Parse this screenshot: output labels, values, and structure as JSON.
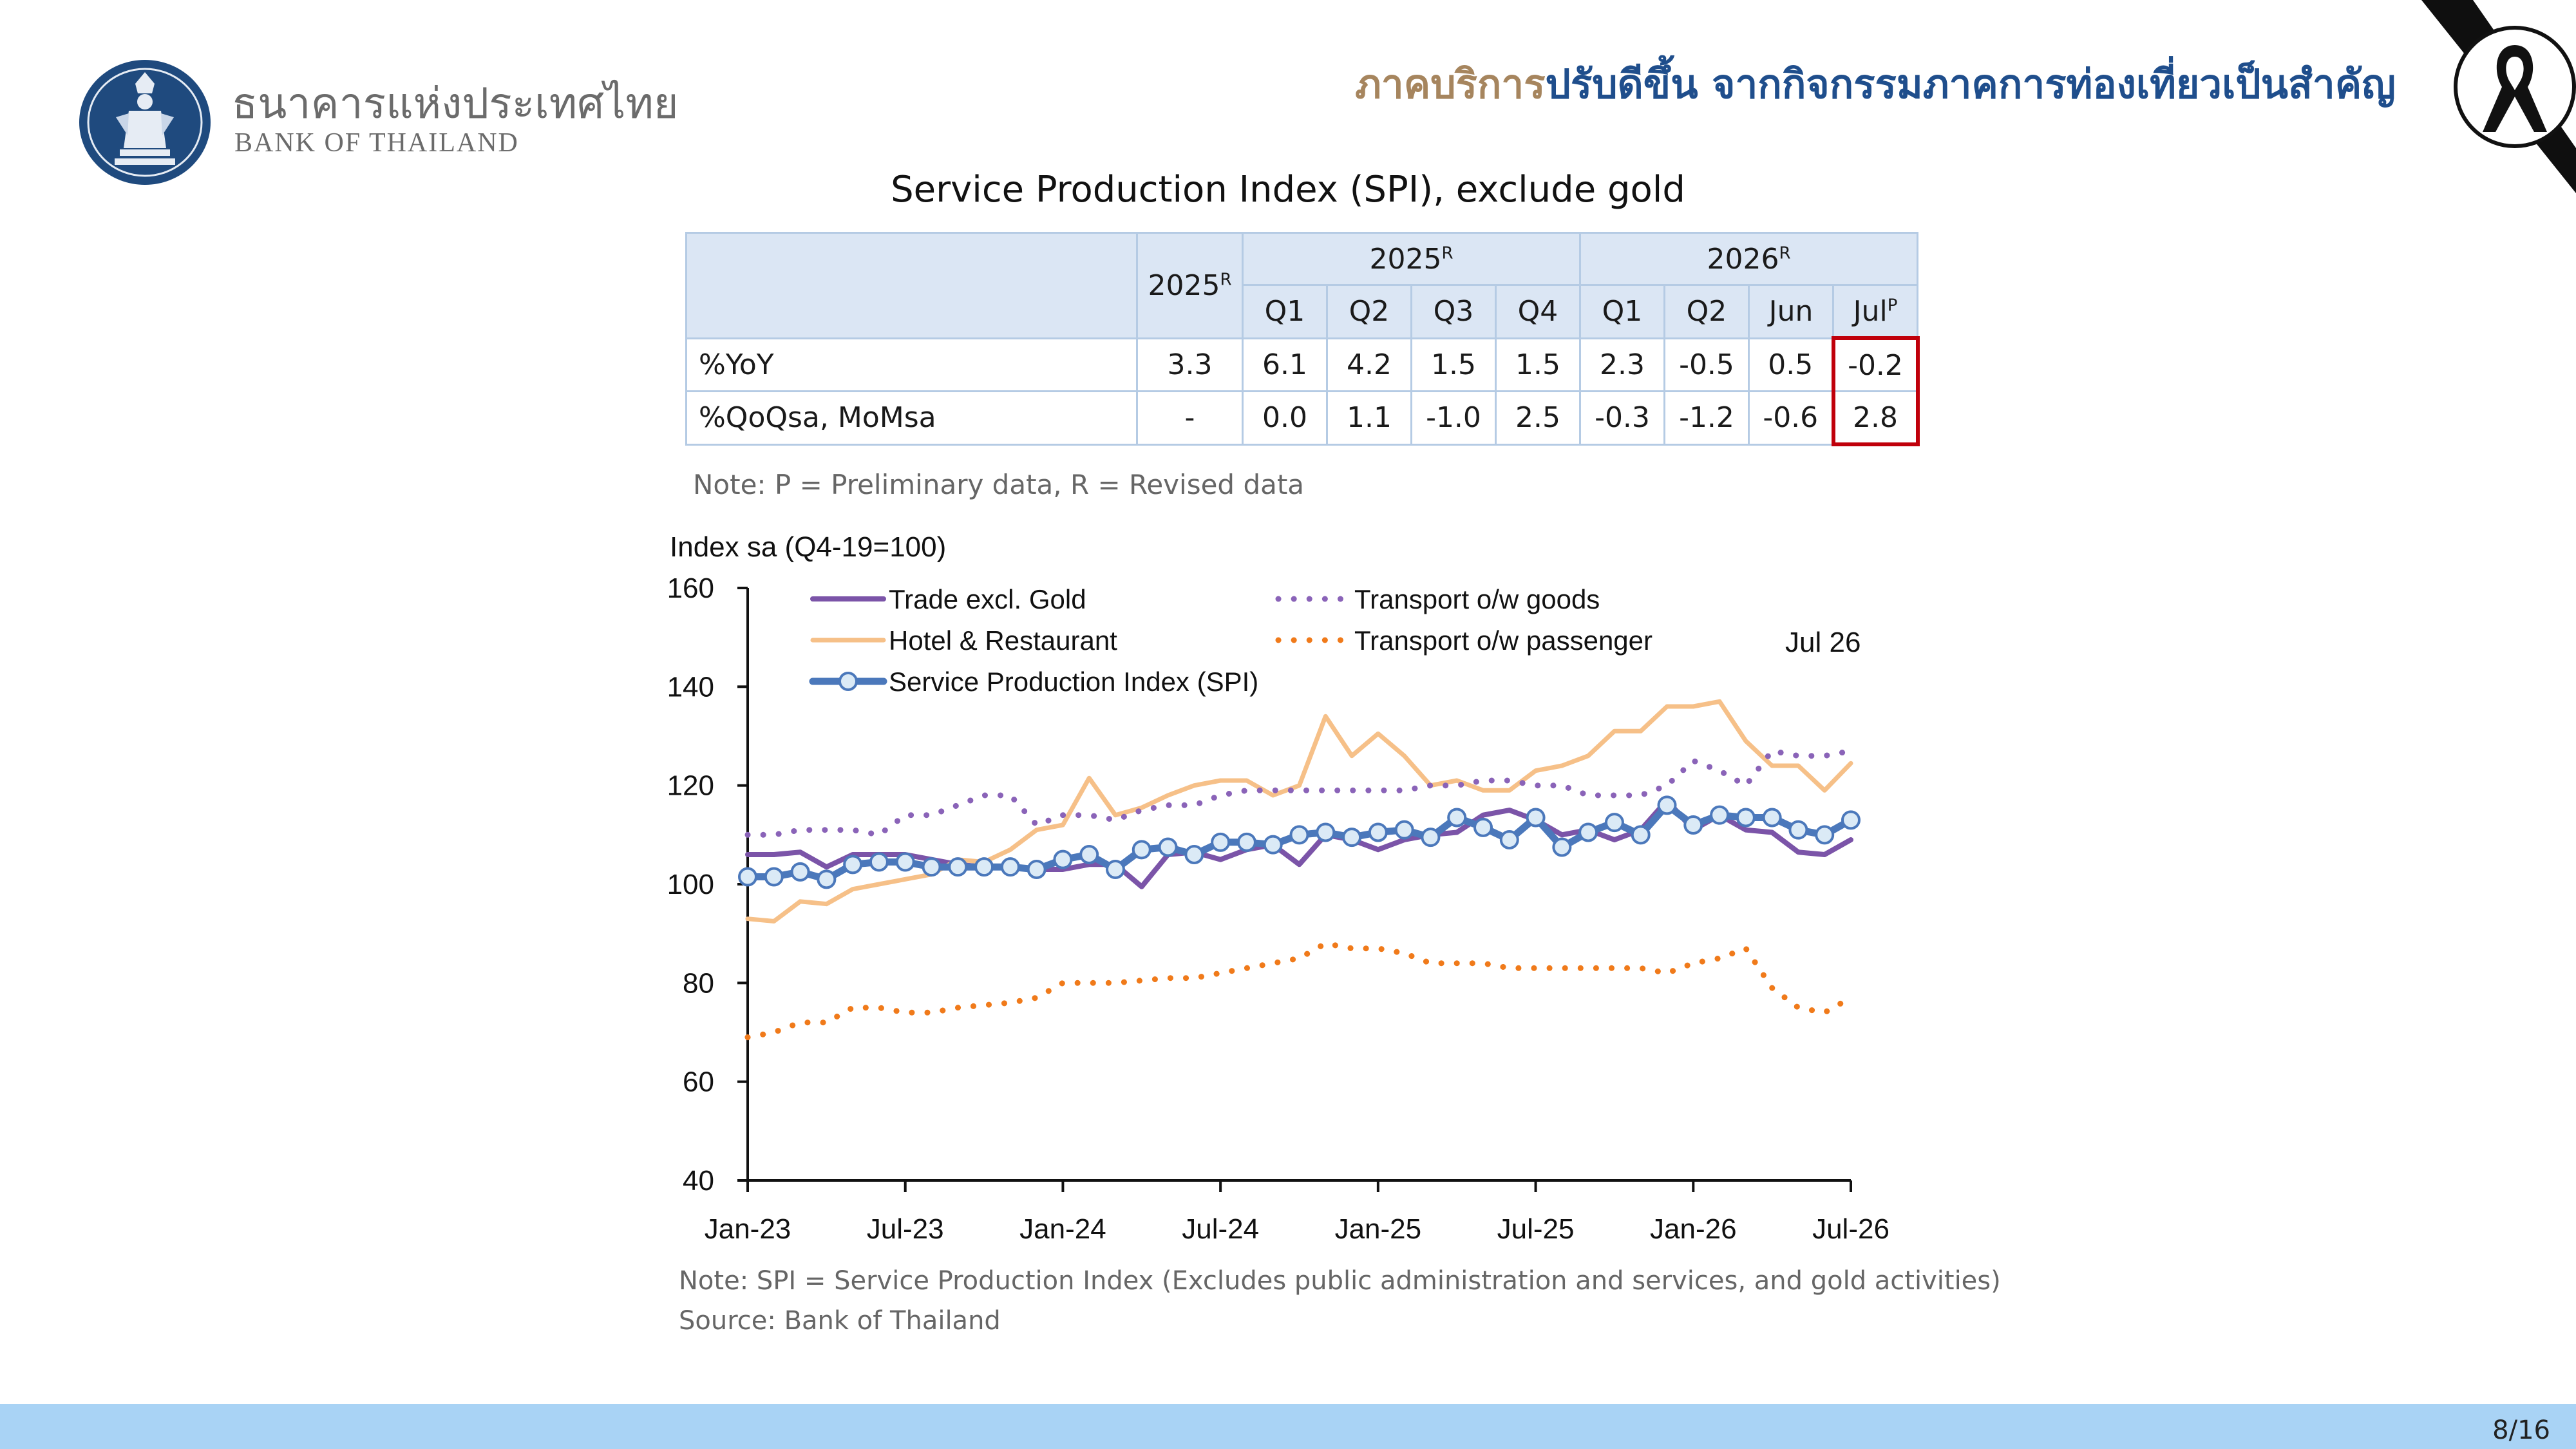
{
  "org": {
    "name_th": "ธนาคารแห่งประเทศไทย",
    "name_en": "BANK OF THAILAND"
  },
  "headline": {
    "part1": "ภาคบริการ",
    "part2": "ปรับดีขึ้น จากกิจกรรมภาคการท่องเที่ยวเป็นสำคัญ"
  },
  "table": {
    "title": "Service Production Index (SPI), exclude gold",
    "col_annual": "2025",
    "col_annual_sup": "R",
    "group1": "2025",
    "group1_sup": "R",
    "group2": "2026",
    "group2_sup": "R",
    "sub1": [
      "Q1",
      "Q2",
      "Q3",
      "Q4"
    ],
    "sub2": [
      "Q1",
      "Q2",
      "Jun",
      "Jul"
    ],
    "sub2_last_sup": "P",
    "rows": [
      {
        "label": "%YoY",
        "annual": "3.3",
        "g1": [
          "6.1",
          "4.2",
          "1.5",
          "1.5"
        ],
        "g2": [
          "2.3",
          "-0.5",
          "0.5",
          "-0.2"
        ]
      },
      {
        "label": "%QoQsa, MoMsa",
        "annual": "-",
        "g1": [
          "0.0",
          "1.1",
          "-1.0",
          "2.5"
        ],
        "g2": [
          "-0.3",
          "-1.2",
          "-0.6",
          "2.8"
        ]
      }
    ],
    "note": "Note:  P = Preliminary data, R = Revised data"
  },
  "chart_data": {
    "type": "line",
    "ylabel": "Index sa (Q4-19=100)",
    "ylim": [
      40,
      160
    ],
    "yticks": [
      "40",
      "60",
      "80",
      "100",
      "120",
      "140",
      "160"
    ],
    "xticks": [
      "Jan-23",
      "Jul-23",
      "Jan-24",
      "Jul-24",
      "Jan-25",
      "Jul-25",
      "Jan-26",
      "Jul-26"
    ],
    "annotation": "Jul 26",
    "x_start": "Jan-23",
    "n_months": 43,
    "series": [
      {
        "name": "Trade excl. Gold",
        "color": "#7b54a8",
        "style": "solid",
        "width": 8,
        "values": [
          106,
          106,
          106.5,
          103.5,
          106,
          106,
          106,
          105,
          104,
          103.5,
          103.5,
          103,
          103,
          104,
          104,
          99.5,
          106,
          106.5,
          105,
          107,
          108,
          104,
          110,
          109,
          107,
          109,
          110,
          110.5,
          114,
          115,
          113,
          110,
          111,
          109,
          111,
          117,
          111,
          114,
          111,
          110.5,
          106.5,
          106,
          109
        ]
      },
      {
        "name": "Hotel & Restaurant",
        "color": "#f6c088",
        "style": "solid",
        "width": 7,
        "values": [
          93,
          92.5,
          96.5,
          96,
          99,
          100,
          101,
          102,
          105,
          104.5,
          107,
          111,
          112,
          121.5,
          114,
          115.5,
          118,
          120,
          121,
          121,
          118,
          120,
          134,
          126,
          130.5,
          126,
          120,
          121,
          119,
          119,
          123,
          124,
          126,
          131,
          131,
          136,
          136,
          137,
          129,
          124,
          124,
          119,
          124.5
        ]
      },
      {
        "name": "Transport o/w goods",
        "color": "#8a63b8",
        "style": "dot",
        "width": 9,
        "values": [
          110,
          110,
          111,
          111,
          111,
          110,
          114,
          114,
          116,
          118,
          118,
          112,
          114,
          114,
          113,
          115,
          116,
          116,
          118,
          119,
          119,
          119,
          119,
          119,
          119,
          119,
          120,
          120,
          121,
          121,
          120,
          120,
          118,
          118,
          118,
          120,
          125,
          123,
          120,
          127,
          126,
          126,
          127
        ]
      },
      {
        "name": "Transport o/w passenger",
        "color": "#f07a1a",
        "style": "dot",
        "width": 9,
        "values": [
          69,
          70,
          72,
          72,
          75,
          75,
          74,
          74,
          75,
          75.5,
          76,
          77,
          80,
          80,
          80,
          80.5,
          81,
          81,
          82,
          83,
          84,
          85,
          88,
          87,
          87,
          86,
          84,
          84,
          84,
          83,
          83,
          83,
          83,
          83,
          83,
          82,
          84,
          85,
          87,
          79,
          75,
          74,
          77
        ]
      },
      {
        "name": "Service Production Index (SPI)",
        "color": "#4b78bb",
        "style": "solid-marker",
        "width": 11,
        "values": [
          101.5,
          101.5,
          102.5,
          101,
          104,
          104.5,
          104.5,
          103.5,
          103.5,
          103.5,
          103.5,
          103,
          105,
          106,
          103,
          107,
          107.5,
          106,
          108.5,
          108.5,
          108,
          110,
          110.5,
          109.5,
          110.5,
          111,
          109.5,
          113.5,
          111.5,
          109,
          113.5,
          107.5,
          110.5,
          112.5,
          110,
          116,
          112,
          114,
          113.5,
          113.5,
          111,
          110,
          113
        ]
      }
    ]
  },
  "chart_note": "Note: SPI = Service Production Index (Excludes public administration and services, and gold activities)",
  "source": "Source: Bank of Thailand",
  "page": "8/16"
}
